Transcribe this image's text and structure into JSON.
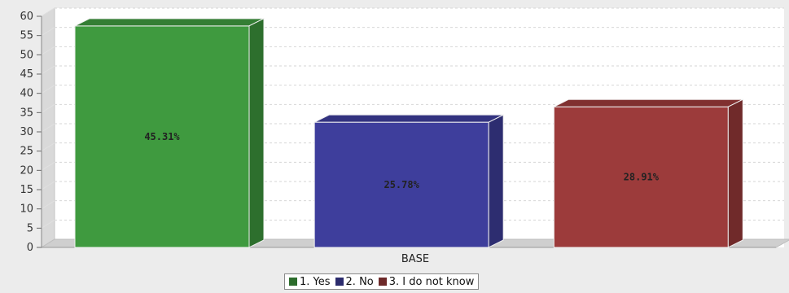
{
  "chart_data": {
    "type": "bar",
    "categories": [
      "BASE"
    ],
    "series": [
      {
        "name": "1. Yes",
        "values": [
          57.5
        ],
        "data_label": "45.31%",
        "color": "#3f9a3f"
      },
      {
        "name": "2. No",
        "values": [
          32.5
        ],
        "data_label": "25.78%",
        "color": "#3e3e9c"
      },
      {
        "name": "3. I do not know",
        "values": [
          36.5
        ],
        "data_label": "28.91%",
        "color": "#9c3b3b"
      }
    ],
    "yticks": [
      0,
      5,
      10,
      15,
      20,
      25,
      30,
      35,
      40,
      45,
      50,
      55,
      60
    ],
    "ylim": [
      0,
      60
    ],
    "grid": true,
    "legend_position": "bottom"
  }
}
